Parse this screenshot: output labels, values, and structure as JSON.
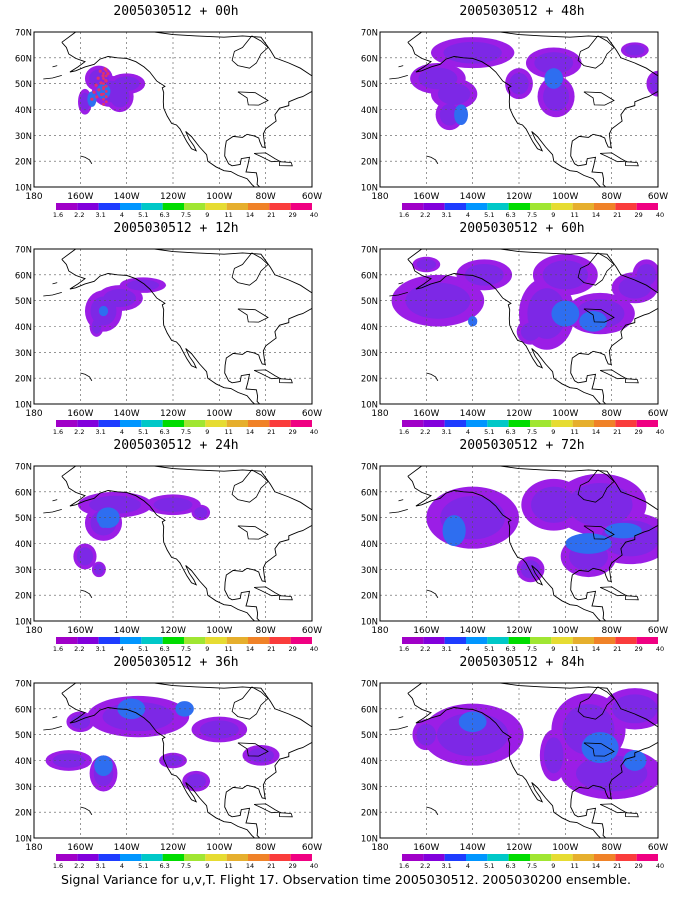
{
  "panels": [
    {
      "title": "2005030512 + 00h"
    },
    {
      "title": "2005030512 + 48h"
    },
    {
      "title": "2005030512 + 12h"
    },
    {
      "title": "2005030512 + 60h"
    },
    {
      "title": "2005030512 + 24h"
    },
    {
      "title": "2005030512 + 72h"
    },
    {
      "title": "2005030512 + 36h"
    },
    {
      "title": "2005030512 + 84h"
    }
  ],
  "lat_labels": [
    "70N",
    "60N",
    "50N",
    "40N",
    "30N",
    "20N",
    "10N"
  ],
  "lon_labels": [
    "180",
    "160W",
    "140W",
    "120W",
    "100W",
    "80W",
    "60W"
  ],
  "colorbar": {
    "values": [
      "1.6",
      "2.2",
      "3.1",
      "4",
      "5.1",
      "6.3",
      "7.5",
      "9",
      "11",
      "14",
      "21",
      "29",
      "40"
    ],
    "colors": [
      "#a000c8",
      "#8200dc",
      "#1e3cff",
      "#0096ff",
      "#00c8c8",
      "#00dc00",
      "#a0e632",
      "#e6dc32",
      "#e6af2d",
      "#f08228",
      "#fa3c3c",
      "#f00082"
    ]
  },
  "footer": "Signal Variance for u,v,T. Flight 17. Observation time 2005030512. 2005030200 ensemble."
}
